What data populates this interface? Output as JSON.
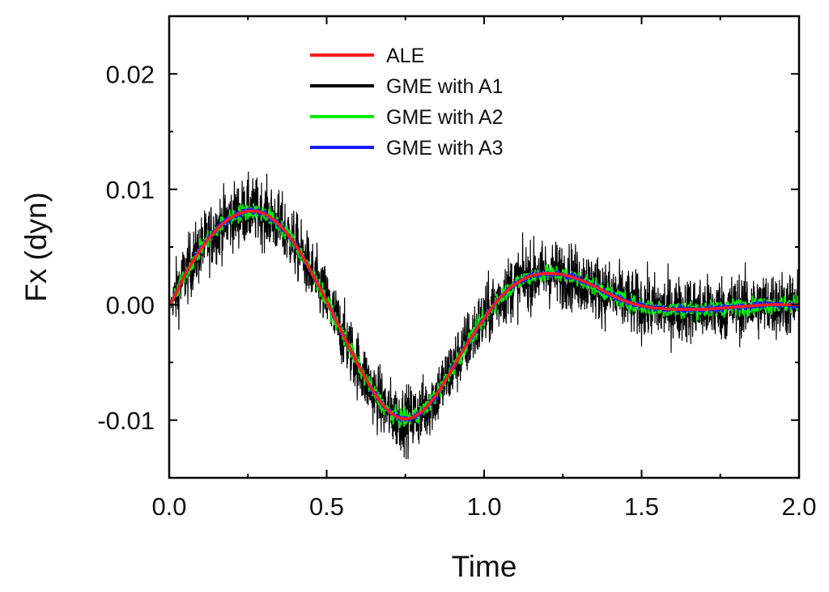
{
  "chart_data": {
    "type": "line",
    "title": "",
    "xlabel": "Time",
    "ylabel": "Fx (dyn)",
    "xlim": [
      0.0,
      2.0
    ],
    "ylim": [
      -0.015,
      0.025
    ],
    "x_ticks": [
      0.0,
      0.5,
      1.0,
      1.5,
      2.0
    ],
    "x_tick_labels": [
      "0.0",
      "0.5",
      "1.0",
      "1.5",
      "2.0"
    ],
    "y_ticks": [
      -0.01,
      0.0,
      0.01,
      0.02
    ],
    "y_tick_labels": [
      "-0.01",
      "0.00",
      "0.01",
      "0.02"
    ],
    "grid": false,
    "legend_position": "top-center",
    "x": [
      0.0,
      0.05,
      0.1,
      0.15,
      0.2,
      0.25,
      0.3,
      0.35,
      0.4,
      0.45,
      0.5,
      0.55,
      0.6,
      0.65,
      0.7,
      0.75,
      0.8,
      0.85,
      0.9,
      0.95,
      1.0,
      1.05,
      1.1,
      1.15,
      1.2,
      1.25,
      1.3,
      1.35,
      1.4,
      1.45,
      1.5,
      1.55,
      1.6,
      1.65,
      1.7,
      1.75,
      1.8,
      1.85,
      1.9,
      1.95,
      2.0
    ],
    "series": [
      {
        "name": "ALE",
        "color": "#ff1a1a",
        "values": [
          0.0,
          0.0026,
          0.0048,
          0.0065,
          0.0076,
          0.0081,
          0.0079,
          0.0069,
          0.0052,
          0.0029,
          0.0003,
          -0.0025,
          -0.0052,
          -0.0076,
          -0.0093,
          -0.0099,
          -0.0093,
          -0.0077,
          -0.0055,
          -0.0032,
          -0.0012,
          0.0006,
          0.0018,
          0.0025,
          0.0027,
          0.0026,
          0.0022,
          0.0016,
          0.0009,
          0.0003,
          -0.0001,
          -0.0003,
          -0.0004,
          -0.0004,
          -0.0004,
          -0.0003,
          -0.0002,
          -0.0001,
          0.0,
          0.0,
          0.0
        ],
        "noise_amplitude": 0.0
      },
      {
        "name": "GME with A1",
        "color": "#000000",
        "values": [
          0.0,
          0.0026,
          0.0048,
          0.0065,
          0.0076,
          0.0081,
          0.0079,
          0.0069,
          0.0052,
          0.0029,
          0.0003,
          -0.0025,
          -0.0052,
          -0.0076,
          -0.0093,
          -0.0099,
          -0.0093,
          -0.0077,
          -0.0055,
          -0.0032,
          -0.0012,
          0.0006,
          0.0018,
          0.0025,
          0.0027,
          0.0026,
          0.0022,
          0.0016,
          0.0009,
          0.0003,
          -0.0001,
          -0.0003,
          -0.0004,
          -0.0004,
          -0.0004,
          -0.0003,
          -0.0002,
          -0.0001,
          0.0,
          0.0,
          0.0
        ],
        "noise_amplitude": 0.0055
      },
      {
        "name": "GME with A2",
        "color": "#00ee00",
        "values": [
          0.0,
          0.0026,
          0.0048,
          0.0065,
          0.0076,
          0.0081,
          0.0079,
          0.0069,
          0.0052,
          0.0029,
          0.0003,
          -0.0025,
          -0.0052,
          -0.0076,
          -0.0093,
          -0.0099,
          -0.0093,
          -0.0077,
          -0.0055,
          -0.0032,
          -0.0012,
          0.0006,
          0.0018,
          0.0025,
          0.0027,
          0.0026,
          0.0022,
          0.0016,
          0.0009,
          0.0003,
          -0.0001,
          -0.0003,
          -0.0004,
          -0.0004,
          -0.0004,
          -0.0003,
          -0.0002,
          -0.0001,
          0.0,
          0.0,
          0.0
        ],
        "noise_amplitude": 0.0014
      },
      {
        "name": "GME with A3",
        "color": "#1a1aff",
        "values": [
          0.0,
          0.0026,
          0.0048,
          0.0065,
          0.0076,
          0.0081,
          0.0079,
          0.0069,
          0.0052,
          0.0029,
          0.0003,
          -0.0025,
          -0.0052,
          -0.0076,
          -0.0093,
          -0.0099,
          -0.0093,
          -0.0077,
          -0.0055,
          -0.0032,
          -0.0012,
          0.0006,
          0.0018,
          0.0025,
          0.0027,
          0.0026,
          0.0022,
          0.0016,
          0.0009,
          0.0003,
          -0.0001,
          -0.0003,
          -0.0004,
          -0.0004,
          -0.0004,
          -0.0003,
          -0.0002,
          -0.0001,
          0.0,
          0.0,
          0.0
        ],
        "noise_amplitude": 0.0006
      }
    ]
  }
}
